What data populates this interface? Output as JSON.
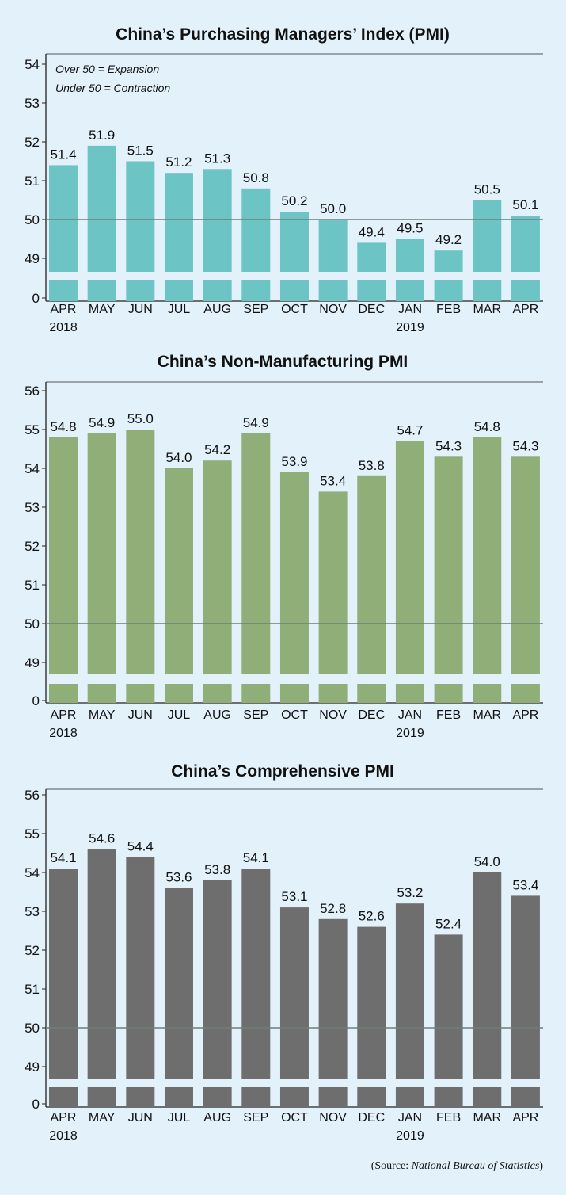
{
  "chart_data": [
    {
      "type": "bar",
      "title": "China’s Purchasing Managers’ Index (PMI)",
      "categories": [
        "APR",
        "MAY",
        "JUN",
        "JUL",
        "AUG",
        "SEP",
        "OCT",
        "NOV",
        "DEC",
        "JAN",
        "FEB",
        "MAR",
        "APR"
      ],
      "years": [
        "2018",
        "",
        "",
        "",
        "",
        "",
        "",
        "",
        "",
        "2019",
        "",
        "",
        ""
      ],
      "values": [
        51.4,
        51.9,
        51.5,
        51.2,
        51.3,
        50.8,
        50.2,
        50.0,
        49.4,
        49.5,
        49.2,
        50.5,
        50.1
      ],
      "value_labels": [
        "51.4",
        "51.9",
        "51.5",
        "51.2",
        "51.3",
        "50.8",
        "50.2",
        "50.0",
        "49.4",
        "49.5",
        "49.2",
        "50.5",
        "50.1"
      ],
      "yticks": [
        "54",
        "53",
        "52",
        "51",
        "50",
        "49",
        "0"
      ],
      "ylim": [
        48.7,
        54
      ],
      "axis_break": true,
      "reference_line": 50,
      "notes": [
        "Over 50 = Expansion",
        "Under 50 = Contraction"
      ],
      "color": "#6cc4c4"
    },
    {
      "type": "bar",
      "title": "China’s Non-Manufacturing PMI",
      "categories": [
        "APR",
        "MAY",
        "JUN",
        "JUL",
        "AUG",
        "SEP",
        "OCT",
        "NOV",
        "DEC",
        "JAN",
        "FEB",
        "MAR",
        "APR"
      ],
      "years": [
        "2018",
        "",
        "",
        "",
        "",
        "",
        "",
        "",
        "",
        "2019",
        "",
        "",
        ""
      ],
      "values": [
        54.8,
        54.9,
        55.0,
        54.0,
        54.2,
        54.9,
        53.9,
        53.4,
        53.8,
        54.7,
        54.3,
        54.8,
        54.3
      ],
      "value_labels": [
        "54.8",
        "54.9",
        "55.0",
        "54.0",
        "54.2",
        "54.9",
        "53.9",
        "53.4",
        "53.8",
        "54.7",
        "54.3",
        "54.8",
        "54.3"
      ],
      "yticks": [
        "56",
        "55",
        "54",
        "53",
        "52",
        "51",
        "50",
        "49",
        "0"
      ],
      "ylim": [
        48.7,
        56
      ],
      "axis_break": true,
      "reference_line": 50,
      "notes": [],
      "color": "#8fae78"
    },
    {
      "type": "bar",
      "title": "China’s Comprehensive PMI",
      "categories": [
        "APR",
        "MAY",
        "JUN",
        "JUL",
        "AUG",
        "SEP",
        "OCT",
        "NOV",
        "DEC",
        "JAN",
        "FEB",
        "MAR",
        "APR"
      ],
      "years": [
        "2018",
        "",
        "",
        "",
        "",
        "",
        "",
        "",
        "",
        "2019",
        "",
        "",
        ""
      ],
      "values": [
        54.1,
        54.6,
        54.4,
        53.6,
        53.8,
        54.1,
        53.1,
        52.8,
        52.6,
        53.2,
        52.4,
        54.0,
        53.4
      ],
      "value_labels": [
        "54.1",
        "54.6",
        "54.4",
        "53.6",
        "53.8",
        "54.1",
        "53.1",
        "52.8",
        "52.6",
        "53.2",
        "52.4",
        "54.0",
        "53.4"
      ],
      "yticks": [
        "56",
        "55",
        "54",
        "53",
        "52",
        "51",
        "50",
        "49",
        "0"
      ],
      "ylim": [
        48.7,
        56
      ],
      "axis_break": true,
      "reference_line": 50,
      "notes": [],
      "color": "#6e6e6e"
    }
  ],
  "source": {
    "prefix": "(Source: ",
    "name": "National Bureau of Statistics",
    "suffix": ")"
  }
}
